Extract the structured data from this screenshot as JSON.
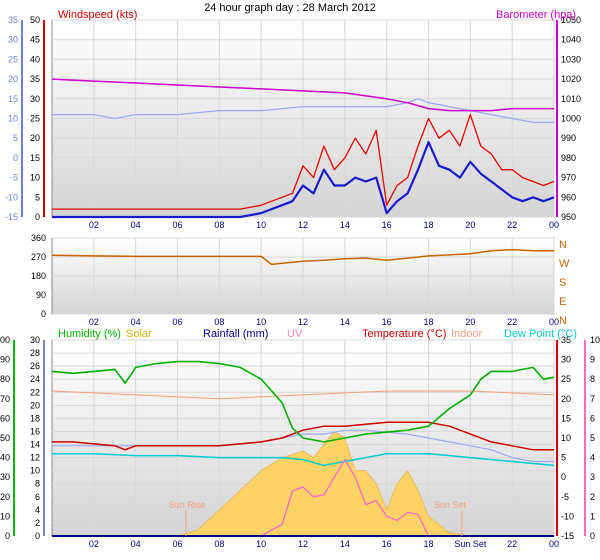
{
  "page": {
    "title": "24 hour graph day : 28 March 2012"
  },
  "chart_data": [
    {
      "id": "wind-baro",
      "type": "line",
      "title": "",
      "labels": {
        "left": "Windspeed (kts)",
        "right": "Barometer (hpa)"
      },
      "x_ticks": [
        "02",
        "04",
        "06",
        "08",
        "10",
        "12",
        "14",
        "16",
        "18",
        "20",
        "22",
        "00"
      ],
      "left_axis": {
        "ticks": [
          0,
          5,
          10,
          15,
          20,
          25,
          30,
          35,
          40,
          45,
          50
        ],
        "range": [
          0,
          50
        ]
      },
      "outer_left_axis": {
        "ticks": [
          -15,
          -10,
          -5,
          0,
          5,
          10,
          15,
          20,
          25,
          30,
          35
        ],
        "range": [
          -15,
          35
        ]
      },
      "right_axis": {
        "ticks": [
          950,
          960,
          970,
          980,
          990,
          1000,
          1010,
          1020,
          1030,
          1040,
          1050
        ],
        "range": [
          950,
          1050
        ]
      },
      "colors": {
        "gust": "#e60000",
        "avg": "#1a1acc",
        "baro": "#cc00cc",
        "temp_light": "#a0a8f0",
        "left_label": "#cc0000",
        "right_label": "#cc00cc",
        "outer_axis": "#6b84d6"
      },
      "series": [
        {
          "name": "Barometer",
          "axis": "right",
          "x": [
            0,
            2,
            4,
            6,
            8,
            10,
            12,
            14,
            16,
            17,
            18,
            19,
            20,
            21,
            22,
            23,
            24
          ],
          "values": [
            1020,
            1019,
            1018,
            1017,
            1016,
            1015,
            1014,
            1013,
            1010,
            1008,
            1005,
            1004,
            1004,
            1004,
            1005,
            1005,
            1005
          ]
        },
        {
          "name": "Gust",
          "axis": "left",
          "x": [
            0,
            2,
            4,
            6,
            8,
            9,
            10,
            10.5,
            11,
            11.5,
            12,
            12.5,
            13,
            13.5,
            14,
            14.5,
            15,
            15.5,
            16,
            16.5,
            17,
            17.5,
            18,
            18.5,
            19,
            19.5,
            20,
            20.5,
            21,
            21.5,
            22,
            22.5,
            23,
            23.5,
            24
          ],
          "values": [
            2,
            2,
            2,
            2,
            2,
            2,
            3,
            4,
            5,
            6,
            13,
            10,
            18,
            12,
            15,
            20,
            16,
            22,
            3,
            8,
            10,
            18,
            25,
            20,
            22,
            18,
            26,
            18,
            16,
            12,
            12,
            10,
            9,
            8,
            9
          ]
        },
        {
          "name": "Average",
          "axis": "left",
          "x": [
            0,
            2,
            4,
            6,
            8,
            9,
            10,
            10.5,
            11,
            11.5,
            12,
            12.5,
            13,
            13.5,
            14,
            14.5,
            15,
            15.5,
            16,
            16.5,
            17,
            17.5,
            18,
            18.5,
            19,
            19.5,
            20,
            20.5,
            21,
            21.5,
            22,
            22.5,
            23,
            23.5,
            24
          ],
          "values": [
            0,
            0,
            0,
            0,
            0,
            0,
            1,
            2,
            3,
            4,
            8,
            6,
            12,
            8,
            8,
            10,
            9,
            10,
            1,
            4,
            6,
            12,
            19,
            13,
            12,
            10,
            14,
            11,
            9,
            7,
            5,
            4,
            5,
            4,
            5
          ]
        },
        {
          "name": "Outdoor temp",
          "axis": "outer_left",
          "x": [
            0,
            2,
            3,
            4,
            6,
            8,
            10,
            12,
            14,
            16,
            17,
            17.5,
            18,
            19,
            20,
            21,
            22,
            23,
            24
          ],
          "values": [
            11,
            11,
            10,
            11,
            11,
            12,
            12,
            13,
            13,
            13,
            14,
            15,
            14,
            13,
            12,
            11,
            10,
            9,
            9
          ]
        }
      ]
    },
    {
      "id": "wind-dir",
      "type": "line",
      "title": "",
      "x_ticks": [
        "02",
        "04",
        "06",
        "08",
        "10",
        "12",
        "14",
        "16",
        "18",
        "20",
        "22",
        "00"
      ],
      "left_axis": {
        "ticks": [
          0,
          90,
          180,
          270,
          360
        ],
        "range": [
          0,
          360
        ]
      },
      "right_labels": [
        "N",
        "W",
        "S",
        "E",
        "N"
      ],
      "colors": {
        "line": "#c86400",
        "right_labels": "#c86400"
      },
      "series": [
        {
          "name": "Direction",
          "x": [
            0,
            2,
            4,
            6,
            8,
            10,
            10.5,
            11,
            12,
            13,
            14,
            15,
            16,
            17,
            18,
            19,
            20,
            21,
            22,
            23,
            24
          ],
          "values": [
            278,
            275,
            273,
            273,
            273,
            273,
            235,
            240,
            250,
            255,
            262,
            265,
            255,
            265,
            275,
            280,
            285,
            300,
            305,
            300,
            300
          ]
        }
      ]
    },
    {
      "id": "temp-hum",
      "type": "line",
      "title": "",
      "labels": {
        "humidity": "Humidity (%)",
        "solar": "Solar",
        "rainfall": "Rainfall (mm)",
        "uv": "UV",
        "temperature": "Temperature (°C)",
        "indoor": "Indoor",
        "dew": "Dew Point (°C)"
      },
      "x_ticks": [
        "02",
        "04",
        "06",
        "08",
        "10",
        "12",
        "14",
        "16",
        "18",
        "Sun Set",
        "22",
        "00"
      ],
      "humidity_axis": {
        "ticks": [
          0,
          10,
          20,
          30,
          40,
          50,
          60,
          70,
          80,
          90,
          100
        ],
        "range": [
          0,
          100
        ]
      },
      "rain_axis": {
        "ticks": [
          0,
          2,
          4,
          6,
          8,
          10,
          12,
          14,
          16,
          18,
          20,
          22,
          24,
          26,
          28,
          30
        ],
        "range": [
          0,
          30
        ]
      },
      "temp_axis": {
        "ticks": [
          -15,
          -10,
          -5,
          0,
          5,
          10,
          15,
          20,
          25,
          30,
          35
        ],
        "range": [
          -15,
          35
        ]
      },
      "uv_axis": {
        "ticks": [
          0,
          1,
          2,
          3,
          4,
          5,
          6,
          7,
          8,
          9,
          10
        ],
        "range": [
          0,
          10
        ]
      },
      "annotations": {
        "sunrise": "Sun Rise",
        "sunset": "Sun Set",
        "sunrise_x": 6.4,
        "sunset_x": 19.6
      },
      "colors": {
        "humidity": "#00b000",
        "solar": "#ffd25a",
        "solar_label": "#c8b400",
        "rainfall": "#000080",
        "uv": "#ff66cc",
        "uv_label": "#ff88cc",
        "temperature": "#cc0000",
        "indoor": "#f0a080",
        "dew": "#00cccc",
        "outdoor_light": "#a0a8f0",
        "uv_axis": "#ff66cc"
      },
      "series": [
        {
          "name": "Humidity",
          "axis": "humidity",
          "x": [
            0,
            1,
            2,
            3,
            3.5,
            4,
            5,
            6,
            7,
            8,
            9,
            10,
            11,
            11.5,
            12,
            13,
            14,
            15,
            16,
            17,
            18,
            19,
            20,
            20.5,
            21,
            22,
            23,
            23.5,
            24
          ],
          "values": [
            84,
            83,
            84,
            85,
            78,
            86,
            88,
            89,
            89,
            88,
            86,
            80,
            68,
            55,
            50,
            48,
            50,
            52,
            53,
            54,
            56,
            65,
            72,
            80,
            84,
            84,
            86,
            80,
            81
          ]
        },
        {
          "name": "Temperature",
          "axis": "temp",
          "x": [
            0,
            1,
            2,
            3,
            3.5,
            4,
            6,
            8,
            10,
            11,
            12,
            13,
            14,
            15,
            16,
            17,
            18,
            19,
            20,
            21,
            22,
            23,
            24
          ],
          "values": [
            9,
            9,
            8.5,
            8,
            7,
            8,
            8,
            8,
            9,
            10,
            12,
            13,
            13,
            13.5,
            14,
            14,
            14,
            13,
            11,
            9,
            8,
            7,
            7
          ]
        },
        {
          "name": "Indoor",
          "axis": "temp",
          "x": [
            0,
            4,
            8,
            12,
            16,
            20,
            24
          ],
          "values": [
            22,
            21,
            20,
            21,
            22,
            22,
            21
          ]
        },
        {
          "name": "Dew Point",
          "axis": "temp",
          "x": [
            0,
            2,
            4,
            6,
            8,
            10,
            11,
            12,
            13,
            14,
            15,
            16,
            17,
            18,
            19,
            20,
            21,
            22,
            23,
            24
          ],
          "values": [
            6,
            6,
            5.5,
            5.5,
            5,
            5,
            5,
            4.5,
            3,
            4,
            5,
            6,
            6,
            6,
            5.5,
            5,
            4.5,
            4,
            3.5,
            3
          ]
        },
        {
          "name": "Outdoor (light)",
          "axis": "temp",
          "x": [
            0,
            2,
            4,
            6,
            8,
            10,
            11,
            12,
            13,
            14,
            15,
            16,
            17,
            18,
            19,
            20,
            21,
            22,
            23,
            24
          ],
          "values": [
            8,
            8,
            8,
            8,
            8,
            9,
            10,
            11,
            11,
            12,
            12,
            11.5,
            11,
            10,
            9,
            8,
            7,
            5,
            4,
            4
          ]
        },
        {
          "name": "UV",
          "axis": "uv",
          "x": [
            10,
            11,
            11.5,
            12,
            12.5,
            13,
            13.5,
            14,
            14.5,
            15,
            15.5,
            16,
            16.5,
            17,
            17.5,
            18,
            19,
            20,
            24
          ],
          "values": [
            0,
            0.6,
            2.3,
            2.5,
            2.0,
            2.1,
            3.0,
            3.9,
            3.0,
            1.6,
            1.8,
            1.0,
            0.8,
            1.2,
            1.1,
            0,
            0,
            0,
            0
          ]
        },
        {
          "name": "Solar",
          "axis": "rain",
          "x": [
            6,
            7,
            8,
            9,
            10,
            11,
            12,
            12.5,
            13,
            13.5,
            14,
            14.5,
            15,
            15.5,
            16,
            16.5,
            17,
            17.5,
            18,
            19,
            20
          ],
          "values": [
            0,
            1,
            4,
            7,
            10,
            12,
            13,
            12,
            14,
            16,
            15,
            10,
            10,
            8,
            4,
            8,
            10,
            7,
            3,
            0.5,
            0
          ]
        },
        {
          "name": "Rainfall",
          "axis": "rain",
          "x": [
            0,
            24
          ],
          "values": [
            0,
            0
          ]
        }
      ]
    }
  ]
}
